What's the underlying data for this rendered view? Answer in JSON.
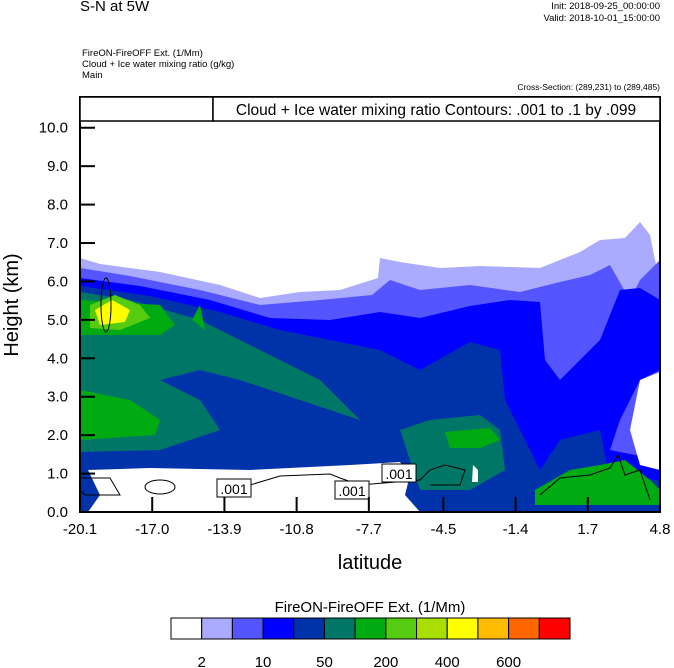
{
  "header": {
    "title": "S-N at 5W",
    "init": "Init: 2018-09-25_00:00:00",
    "valid": "Valid: 2018-10-01_15:00:00",
    "field_lines": [
      "FireON-FireOFF Ext.   (1/Mm)",
      "Cloud + Ice water mixing ratio   (g/kg)",
      "Main"
    ],
    "cross_section": "Cross-Section: (289,231) to (289,485)"
  },
  "chart_data": {
    "type": "heatmap",
    "title": "Cloud + Ice water mixing ratio Contours: .001 to .1 by .099",
    "xlabel": "latitude",
    "ylabel": "Height (km)",
    "xlim": [
      -20.1,
      4.8
    ],
    "ylim": [
      0,
      10.8
    ],
    "x_ticks": [
      "-20.1",
      "-17.0",
      "-13.9",
      "-10.8",
      "-7.7",
      "-4.5",
      "-1.4",
      "1.7",
      "4.8"
    ],
    "y_ticks": [
      "0.0",
      "1.0",
      "2.0",
      "3.0",
      "4.0",
      "5.0",
      "6.0",
      "7.0",
      "8.0",
      "9.0",
      "10.0"
    ],
    "contour_labels": [
      ".001",
      ".001",
      ".001"
    ],
    "colorbar": {
      "title": "FireON-FireOFF Ext.  (1/Mm)",
      "colors": [
        "#ffffff",
        "#aaaaff",
        "#5555ff",
        "#0000ff",
        "#0033aa",
        "#007766",
        "#00aa11",
        "#55cc11",
        "#aadd00",
        "#ffff00",
        "#ffbb00",
        "#ff6600",
        "#ff0000"
      ],
      "labels": [
        "2",
        "10",
        "50",
        "200",
        "400",
        "600"
      ]
    }
  }
}
